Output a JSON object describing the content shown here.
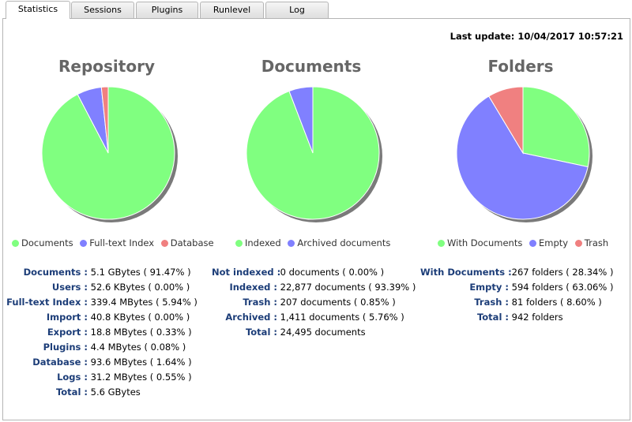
{
  "tabs": [
    {
      "label": "Statistics",
      "active": true
    },
    {
      "label": "Sessions"
    },
    {
      "label": "Plugins"
    },
    {
      "label": "Runlevel"
    },
    {
      "label": "Log"
    }
  ],
  "last_update": "Last update: 10/04/2017 10:57:21",
  "colors": {
    "green": "#80ff80",
    "blue": "#8080ff",
    "red": "#f08080",
    "label": "#1c3d78",
    "title": "#666666"
  },
  "chart_data": [
    {
      "type": "pie",
      "title": "Repository",
      "categories": [
        "Documents",
        "Full-text Index",
        "Database"
      ],
      "values": [
        91.47,
        5.94,
        1.64
      ],
      "colors": [
        "#80ff80",
        "#8080ff",
        "#f08080"
      ],
      "legend": "bottom"
    },
    {
      "type": "pie",
      "title": "Documents",
      "categories": [
        "Indexed",
        "Archived documents"
      ],
      "values": [
        93.39,
        5.76
      ],
      "colors": [
        "#80ff80",
        "#8080ff"
      ],
      "legend": "bottom"
    },
    {
      "type": "pie",
      "title": "Folders",
      "categories": [
        "With Documents",
        "Empty",
        "Trash"
      ],
      "values": [
        28.34,
        63.06,
        8.6
      ],
      "colors": [
        "#80ff80",
        "#8080ff",
        "#f08080"
      ],
      "legend": "bottom"
    }
  ],
  "repository_stats": [
    {
      "label": "Documents :",
      "value": "5.1 GBytes ( 91.47% )"
    },
    {
      "label": "Users :",
      "value": "52.6 KBytes ( 0.00% )"
    },
    {
      "label": "Full-text Index :",
      "value": "339.4 MBytes ( 5.94% )"
    },
    {
      "label": "Import :",
      "value": "40.8 KBytes ( 0.00% )"
    },
    {
      "label": "Export :",
      "value": "18.8 MBytes ( 0.33% )"
    },
    {
      "label": "Plugins :",
      "value": "4.4 MBytes ( 0.08% )"
    },
    {
      "label": "Database :",
      "value": "93.6 MBytes ( 1.64% )"
    },
    {
      "label": "Logs :",
      "value": "31.2 MBytes ( 0.55% )"
    },
    {
      "label": "Total :",
      "value": "5.6 GBytes"
    }
  ],
  "documents_stats": [
    {
      "label": "Not indexed :",
      "value": "0 documents ( 0.00% )"
    },
    {
      "label": "Indexed :",
      "value": "22,877 documents ( 93.39% )"
    },
    {
      "label": "Trash :",
      "value": "207 documents ( 0.85% )"
    },
    {
      "label": "Archived :",
      "value": "1,411 documents ( 5.76% )"
    },
    {
      "label": "Total :",
      "value": "24,495 documents"
    }
  ],
  "folders_stats": [
    {
      "label": "With Documents :",
      "value": "267 folders ( 28.34% )"
    },
    {
      "label": "Empty :",
      "value": "594 folders ( 63.06% )"
    },
    {
      "label": "Trash :",
      "value": "81 folders ( 8.60% )"
    },
    {
      "label": "Total :",
      "value": "942 folders"
    }
  ]
}
